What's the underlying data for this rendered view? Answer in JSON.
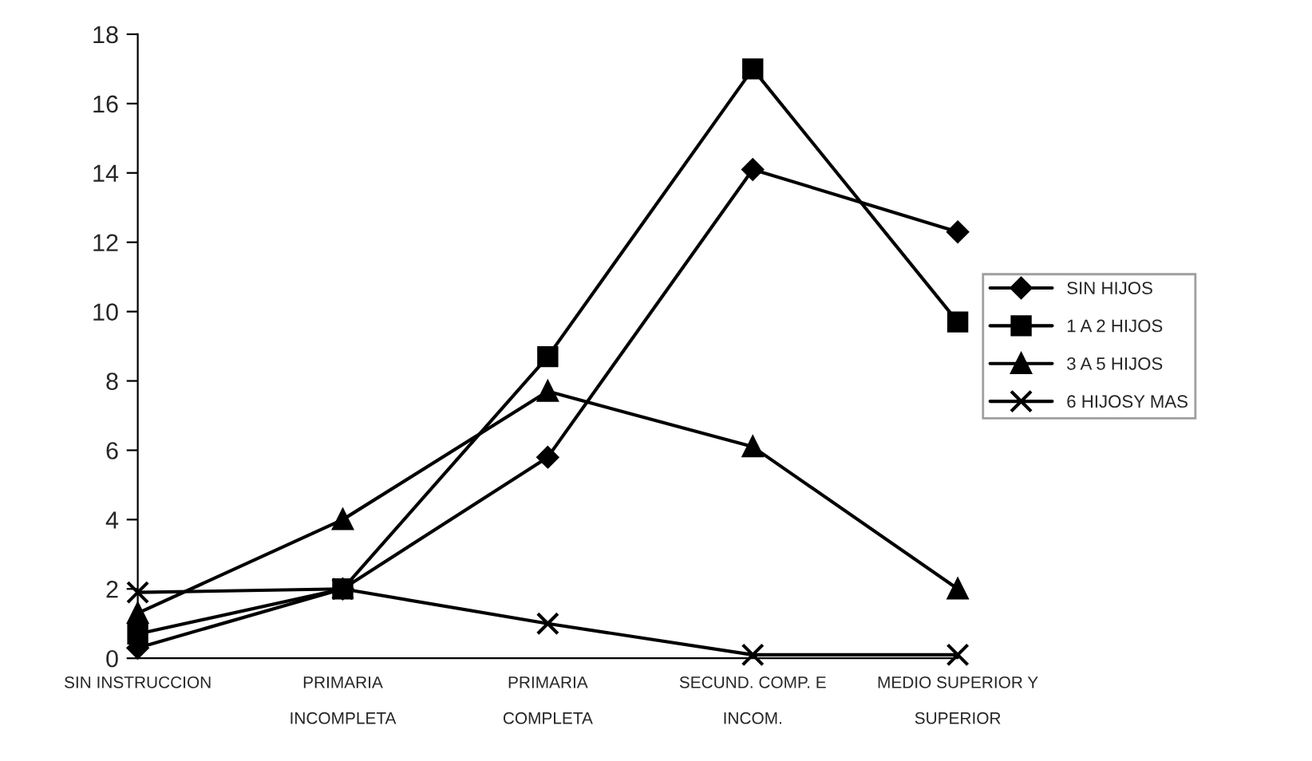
{
  "chart_data": {
    "type": "line",
    "categories": [
      "SIN INSTRUCCION",
      "PRIMARIA\n\nINCOMPLETA",
      "PRIMARIA\n\nCOMPLETA",
      "SECUND. COMP. E\n\nINCOM.",
      "MEDIO SUPERIOR Y\n\nSUPERIOR"
    ],
    "series": [
      {
        "name": "SIN HIJOS",
        "color": "#000000",
        "marker": "diamond",
        "values": [
          0.3,
          2,
          5.8,
          14.1,
          12.3
        ]
      },
      {
        "name": "1 A 2 HIJOS",
        "color": "#000000",
        "marker": "square",
        "values": [
          0.7,
          2,
          8.7,
          17,
          9.7
        ]
      },
      {
        "name": "3 A 5 HIJOS",
        "color": "#000000",
        "marker": "triangle",
        "values": [
          1.3,
          4,
          7.7,
          6.1,
          2
        ]
      },
      {
        "name": "6 HIJOSY MAS",
        "color": "#000000",
        "marker": "cross",
        "values": [
          1.9,
          2,
          1,
          0.1,
          0.1
        ]
      }
    ],
    "ylim": [
      0,
      18
    ],
    "yticks": [
      0,
      2,
      4,
      6,
      8,
      10,
      12,
      14,
      16,
      18
    ],
    "grid": false,
    "legend": "right",
    "line_style": "solid"
  }
}
